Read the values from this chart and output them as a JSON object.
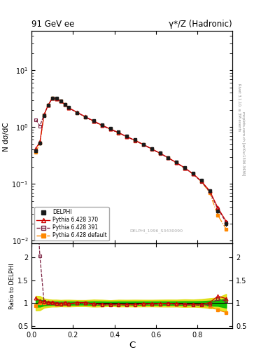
{
  "title_left": "91 GeV ee",
  "title_right": "γ*/Z (Hadronic)",
  "ylabel_main": "N dσ/dC",
  "ylabel_ratio": "Ratio to DELPHI",
  "xlabel": "C",
  "watermark": "DELPHI_1996_S3430090",
  "right_label_top": "Rivet 3.1.10, ≥ 3M events",
  "right_label_bot": "mcplots.cern.ch [arXiv:1306.3436]",
  "C_centers": [
    0.02,
    0.04,
    0.06,
    0.08,
    0.1,
    0.12,
    0.14,
    0.16,
    0.18,
    0.22,
    0.26,
    0.3,
    0.34,
    0.38,
    0.42,
    0.46,
    0.5,
    0.54,
    0.58,
    0.62,
    0.66,
    0.7,
    0.74,
    0.78,
    0.82,
    0.86,
    0.9,
    0.94
  ],
  "delphi_y": [
    0.38,
    0.52,
    1.6,
    2.4,
    3.2,
    3.2,
    2.9,
    2.5,
    2.2,
    1.8,
    1.5,
    1.3,
    1.1,
    0.95,
    0.82,
    0.7,
    0.6,
    0.5,
    0.42,
    0.35,
    0.29,
    0.24,
    0.195,
    0.155,
    0.115,
    0.075,
    0.033,
    0.02
  ],
  "delphi_err": [
    0.03,
    0.04,
    0.08,
    0.1,
    0.12,
    0.12,
    0.1,
    0.09,
    0.08,
    0.06,
    0.05,
    0.05,
    0.04,
    0.03,
    0.03,
    0.025,
    0.022,
    0.018,
    0.015,
    0.013,
    0.011,
    0.009,
    0.008,
    0.006,
    0.005,
    0.004,
    0.002,
    0.002
  ],
  "py370_y": [
    0.42,
    0.55,
    1.65,
    2.45,
    3.25,
    3.18,
    2.88,
    2.52,
    2.18,
    1.82,
    1.52,
    1.28,
    1.08,
    0.93,
    0.8,
    0.68,
    0.585,
    0.495,
    0.415,
    0.348,
    0.289,
    0.237,
    0.191,
    0.151,
    0.112,
    0.076,
    0.038,
    0.022
  ],
  "py391_y": [
    1.35,
    1.05,
    1.65,
    2.42,
    3.22,
    3.15,
    2.85,
    2.5,
    2.15,
    1.8,
    1.5,
    1.26,
    1.06,
    0.915,
    0.79,
    0.675,
    0.578,
    0.49,
    0.41,
    0.344,
    0.286,
    0.234,
    0.189,
    0.149,
    0.11,
    0.073,
    0.036,
    0.021
  ],
  "pydef_y": [
    0.36,
    0.52,
    1.62,
    2.42,
    3.22,
    3.15,
    2.85,
    2.5,
    2.15,
    1.8,
    1.5,
    1.26,
    1.06,
    0.915,
    0.79,
    0.675,
    0.578,
    0.49,
    0.41,
    0.344,
    0.286,
    0.234,
    0.189,
    0.149,
    0.11,
    0.07,
    0.028,
    0.016
  ],
  "color_delphi": "#1a1a1a",
  "color_py370": "#cc0000",
  "color_py391": "#7a2040",
  "color_pydef": "#ff8800",
  "band_green": "#00bb00",
  "band_yellow": "#dddd00",
  "ylim_main": [
    0.009,
    50
  ],
  "ylim_ratio": [
    0.45,
    2.3
  ],
  "xlim": [
    0.0,
    0.97
  ]
}
